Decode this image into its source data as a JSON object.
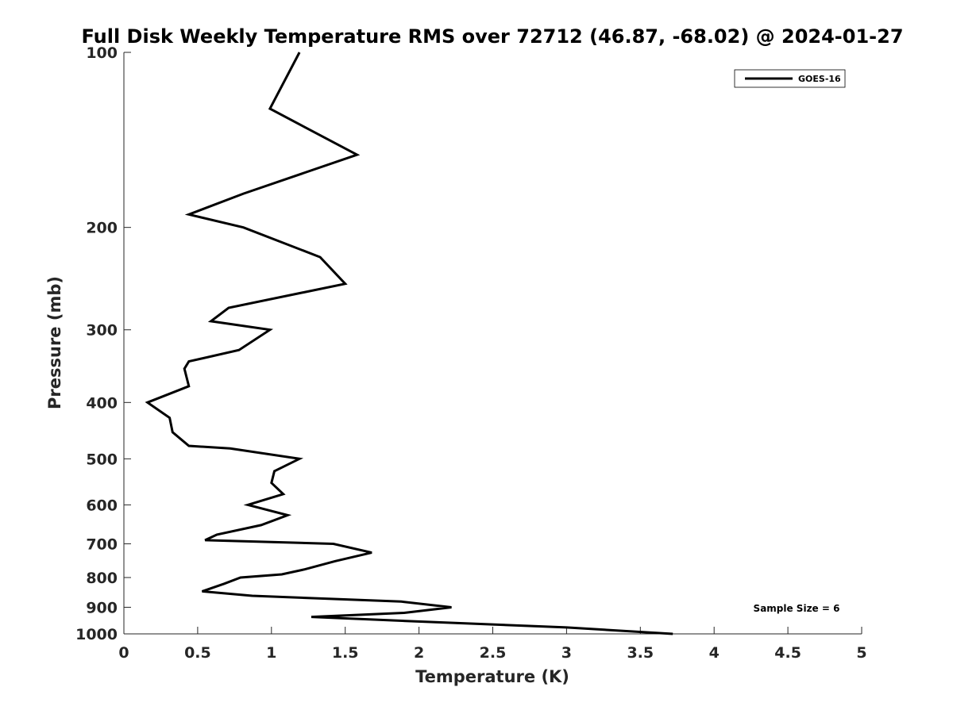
{
  "chart_data": {
    "type": "line",
    "title": "Full Disk Weekly Temperature RMS over 72712 (46.87, -68.02) @ 2024-01-27",
    "xlabel": "Temperature (K)",
    "ylabel": "Pressure (mb)",
    "xlim": [
      0,
      5
    ],
    "ylim": [
      1000,
      100
    ],
    "y_scale": "log",
    "y_reversed": true,
    "x_ticks": [
      "0",
      "0.5",
      "1",
      "1.5",
      "2",
      "2.5",
      "3",
      "3.5",
      "4",
      "4.5",
      "5"
    ],
    "x_tick_values": [
      0,
      0.5,
      1,
      1.5,
      2,
      2.5,
      3,
      3.5,
      4,
      4.5,
      5
    ],
    "y_ticks": [
      "100",
      "200",
      "300",
      "400",
      "500",
      "600",
      "700",
      "800",
      "900",
      "1000"
    ],
    "y_tick_values": [
      100,
      200,
      300,
      400,
      500,
      600,
      700,
      800,
      900,
      1000
    ],
    "grid": false,
    "legend_position": "top-right",
    "annotation": "Sample Size = 6",
    "series": [
      {
        "name": "GOES-16",
        "color": "#000000",
        "points": [
          [
            1.19,
            100
          ],
          [
            0.99,
            125
          ],
          [
            1.58,
            150
          ],
          [
            0.81,
            175
          ],
          [
            0.44,
            190
          ],
          [
            0.81,
            200
          ],
          [
            1.33,
            225
          ],
          [
            1.5,
            250
          ],
          [
            0.71,
            275
          ],
          [
            0.59,
            290
          ],
          [
            0.99,
            300
          ],
          [
            0.78,
            325
          ],
          [
            0.44,
            340
          ],
          [
            0.41,
            350
          ],
          [
            0.44,
            375
          ],
          [
            0.16,
            400
          ],
          [
            0.31,
            425
          ],
          [
            0.33,
            450
          ],
          [
            0.44,
            475
          ],
          [
            0.72,
            480
          ],
          [
            1.19,
            500
          ],
          [
            1.02,
            525
          ],
          [
            1.0,
            550
          ],
          [
            1.08,
            575
          ],
          [
            0.84,
            600
          ],
          [
            1.11,
            625
          ],
          [
            0.93,
            650
          ],
          [
            0.63,
            675
          ],
          [
            0.55,
            690
          ],
          [
            1.42,
            700
          ],
          [
            1.68,
            725
          ],
          [
            1.43,
            750
          ],
          [
            1.22,
            775
          ],
          [
            1.07,
            790
          ],
          [
            0.79,
            800
          ],
          [
            0.68,
            820
          ],
          [
            0.53,
            845
          ],
          [
            0.87,
            860
          ],
          [
            1.88,
            880
          ],
          [
            2.22,
            900
          ],
          [
            1.9,
            920
          ],
          [
            1.27,
            935
          ],
          [
            1.91,
            950
          ],
          [
            3.0,
            975
          ],
          [
            3.72,
            1000
          ]
        ]
      }
    ]
  }
}
